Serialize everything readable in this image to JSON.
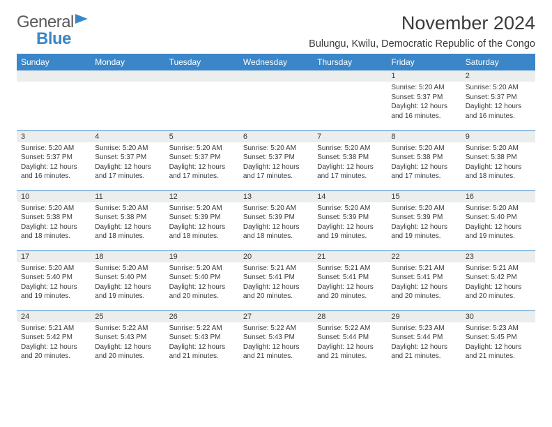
{
  "logo": {
    "word1": "General",
    "word2": "Blue"
  },
  "header": {
    "title": "November 2024",
    "subtitle": "Bulungu, Kwilu, Democratic Republic of the Congo"
  },
  "colors": {
    "header_bg": "#3a86c8",
    "header_text": "#ffffff",
    "daynum_bg": "#eceded",
    "border": "#3a86c8",
    "text": "#3a3a3a",
    "page_bg": "#ffffff"
  },
  "typography": {
    "title_fontsize": 27,
    "subtitle_fontsize": 14.5,
    "dayhead_fontsize": 12,
    "daynum_fontsize": 11,
    "body_fontsize": 10,
    "font_family": "Arial"
  },
  "dayHeaders": [
    "Sunday",
    "Monday",
    "Tuesday",
    "Wednesday",
    "Thursday",
    "Friday",
    "Saturday"
  ],
  "weeks": [
    [
      {
        "blank": true
      },
      {
        "blank": true
      },
      {
        "blank": true
      },
      {
        "blank": true
      },
      {
        "blank": true
      },
      {
        "num": "1",
        "sunrise": "5:20 AM",
        "sunset": "5:37 PM",
        "daylight": "12 hours and 16 minutes."
      },
      {
        "num": "2",
        "sunrise": "5:20 AM",
        "sunset": "5:37 PM",
        "daylight": "12 hours and 16 minutes."
      }
    ],
    [
      {
        "num": "3",
        "sunrise": "5:20 AM",
        "sunset": "5:37 PM",
        "daylight": "12 hours and 16 minutes."
      },
      {
        "num": "4",
        "sunrise": "5:20 AM",
        "sunset": "5:37 PM",
        "daylight": "12 hours and 17 minutes."
      },
      {
        "num": "5",
        "sunrise": "5:20 AM",
        "sunset": "5:37 PM",
        "daylight": "12 hours and 17 minutes."
      },
      {
        "num": "6",
        "sunrise": "5:20 AM",
        "sunset": "5:37 PM",
        "daylight": "12 hours and 17 minutes."
      },
      {
        "num": "7",
        "sunrise": "5:20 AM",
        "sunset": "5:38 PM",
        "daylight": "12 hours and 17 minutes."
      },
      {
        "num": "8",
        "sunrise": "5:20 AM",
        "sunset": "5:38 PM",
        "daylight": "12 hours and 17 minutes."
      },
      {
        "num": "9",
        "sunrise": "5:20 AM",
        "sunset": "5:38 PM",
        "daylight": "12 hours and 18 minutes."
      }
    ],
    [
      {
        "num": "10",
        "sunrise": "5:20 AM",
        "sunset": "5:38 PM",
        "daylight": "12 hours and 18 minutes."
      },
      {
        "num": "11",
        "sunrise": "5:20 AM",
        "sunset": "5:38 PM",
        "daylight": "12 hours and 18 minutes."
      },
      {
        "num": "12",
        "sunrise": "5:20 AM",
        "sunset": "5:39 PM",
        "daylight": "12 hours and 18 minutes."
      },
      {
        "num": "13",
        "sunrise": "5:20 AM",
        "sunset": "5:39 PM",
        "daylight": "12 hours and 18 minutes."
      },
      {
        "num": "14",
        "sunrise": "5:20 AM",
        "sunset": "5:39 PM",
        "daylight": "12 hours and 19 minutes."
      },
      {
        "num": "15",
        "sunrise": "5:20 AM",
        "sunset": "5:39 PM",
        "daylight": "12 hours and 19 minutes."
      },
      {
        "num": "16",
        "sunrise": "5:20 AM",
        "sunset": "5:40 PM",
        "daylight": "12 hours and 19 minutes."
      }
    ],
    [
      {
        "num": "17",
        "sunrise": "5:20 AM",
        "sunset": "5:40 PM",
        "daylight": "12 hours and 19 minutes."
      },
      {
        "num": "18",
        "sunrise": "5:20 AM",
        "sunset": "5:40 PM",
        "daylight": "12 hours and 19 minutes."
      },
      {
        "num": "19",
        "sunrise": "5:20 AM",
        "sunset": "5:40 PM",
        "daylight": "12 hours and 20 minutes."
      },
      {
        "num": "20",
        "sunrise": "5:21 AM",
        "sunset": "5:41 PM",
        "daylight": "12 hours and 20 minutes."
      },
      {
        "num": "21",
        "sunrise": "5:21 AM",
        "sunset": "5:41 PM",
        "daylight": "12 hours and 20 minutes."
      },
      {
        "num": "22",
        "sunrise": "5:21 AM",
        "sunset": "5:41 PM",
        "daylight": "12 hours and 20 minutes."
      },
      {
        "num": "23",
        "sunrise": "5:21 AM",
        "sunset": "5:42 PM",
        "daylight": "12 hours and 20 minutes."
      }
    ],
    [
      {
        "num": "24",
        "sunrise": "5:21 AM",
        "sunset": "5:42 PM",
        "daylight": "12 hours and 20 minutes."
      },
      {
        "num": "25",
        "sunrise": "5:22 AM",
        "sunset": "5:43 PM",
        "daylight": "12 hours and 20 minutes."
      },
      {
        "num": "26",
        "sunrise": "5:22 AM",
        "sunset": "5:43 PM",
        "daylight": "12 hours and 21 minutes."
      },
      {
        "num": "27",
        "sunrise": "5:22 AM",
        "sunset": "5:43 PM",
        "daylight": "12 hours and 21 minutes."
      },
      {
        "num": "28",
        "sunrise": "5:22 AM",
        "sunset": "5:44 PM",
        "daylight": "12 hours and 21 minutes."
      },
      {
        "num": "29",
        "sunrise": "5:23 AM",
        "sunset": "5:44 PM",
        "daylight": "12 hours and 21 minutes."
      },
      {
        "num": "30",
        "sunrise": "5:23 AM",
        "sunset": "5:45 PM",
        "daylight": "12 hours and 21 minutes."
      }
    ]
  ],
  "labels": {
    "sunrise": "Sunrise:",
    "sunset": "Sunset:",
    "daylight": "Daylight:"
  }
}
